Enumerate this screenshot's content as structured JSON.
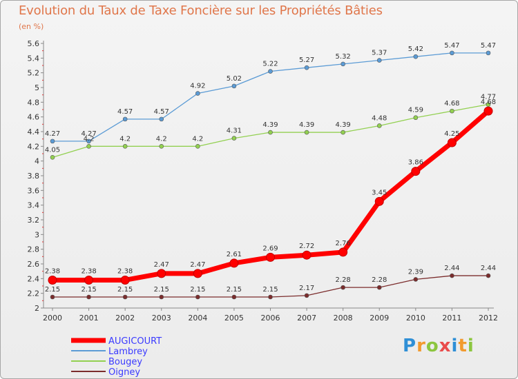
{
  "title": "Evolution du Taux de Taxe Foncière sur les Propriétés Bâties",
  "subtitle": "(en %)",
  "logo_text": "Proxiti",
  "chart_data": {
    "type": "line",
    "title": "Evolution du Taux de Taxe Foncière sur les Propriétés Bâties",
    "ylabel": "(en %)",
    "xlabel": "",
    "x": [
      "2000",
      "2001",
      "2002",
      "2003",
      "2004",
      "2005",
      "2006",
      "2007",
      "2008",
      "2009",
      "2010",
      "2011",
      "2012"
    ],
    "ylim": [
      2,
      5.6
    ],
    "yticks": [
      "2",
      "2.2",
      "2.4",
      "2.6",
      "2.8",
      "3",
      "3.2",
      "3.4",
      "3.6",
      "3.8",
      "4",
      "4.2",
      "4.4",
      "4.6",
      "4.8",
      "5",
      "5.2",
      "5.4",
      "5.6"
    ],
    "grid": false,
    "legend_position": "bottom-left",
    "series": [
      {
        "name": "AUGICOURT",
        "color": "#ff0000",
        "values": [
          2.38,
          2.38,
          2.38,
          2.47,
          2.47,
          2.61,
          2.69,
          2.72,
          2.76,
          3.45,
          3.86,
          4.25,
          4.68
        ],
        "labels": [
          "2.38",
          "2.38",
          "2.38",
          "2.47",
          "2.47",
          "2.61",
          "2.69",
          "2.72",
          "2.76",
          "3.45",
          "3.86",
          "4.25",
          "4.68"
        ]
      },
      {
        "name": "Lambrey",
        "color": "#5b9bd5",
        "values": [
          4.27,
          4.27,
          4.57,
          4.57,
          4.92,
          5.02,
          5.22,
          5.27,
          5.32,
          5.37,
          5.42,
          5.47,
          5.47
        ],
        "labels": [
          "4.27",
          "4.27",
          "4.57",
          "4.57",
          "4.92",
          "5.02",
          "5.22",
          "5.27",
          "5.32",
          "5.37",
          "5.42",
          "5.47",
          "5.47"
        ]
      },
      {
        "name": "Bougey",
        "color": "#92d050",
        "values": [
          4.05,
          4.2,
          4.2,
          4.2,
          4.2,
          4.31,
          4.39,
          4.39,
          4.39,
          4.48,
          4.59,
          4.68,
          4.77
        ],
        "labels": [
          "4.05",
          "4.2",
          "4.2",
          "4.2",
          "4.2",
          "4.31",
          "4.39",
          "4.39",
          "4.39",
          "4.48",
          "4.59",
          "4.68",
          "4.77"
        ]
      },
      {
        "name": "Oigney",
        "color": "#7b2c2c",
        "values": [
          2.15,
          2.15,
          2.15,
          2.15,
          2.15,
          2.15,
          2.15,
          2.17,
          2.28,
          2.28,
          2.39,
          2.44,
          2.44
        ],
        "labels": [
          "2.15",
          "2.15",
          "2.15",
          "2.15",
          "2.15",
          "2.15",
          "2.15",
          "2.17",
          "2.28",
          "2.28",
          "2.39",
          "2.44",
          "2.44"
        ]
      }
    ]
  }
}
